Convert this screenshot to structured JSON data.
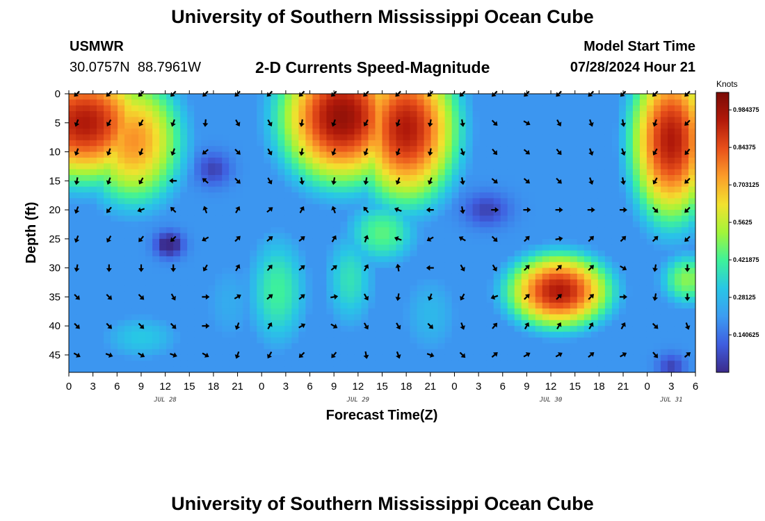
{
  "header": {
    "title": "University of Southern Mississippi Ocean Cube",
    "station_name": "USMWR",
    "station_coords": "30.0757N  88.7961W",
    "subtitle": "2-D Currents Speed-Magnitude",
    "model_label": "Model Start Time",
    "model_time": "07/28/2024 Hour 21"
  },
  "footer": {
    "title": "University of Southern Mississippi Ocean Cube"
  },
  "colors": [
    "#3b2a8a",
    "#3f5ee0",
    "#3c9cf2",
    "#28c6e6",
    "#3ef29a",
    "#a2f53a",
    "#f2e12e",
    "#fb9d2a",
    "#e8501a",
    "#b21a0a",
    "#7a0b06"
  ],
  "chart_data": {
    "type": "heatmap",
    "xlabel": "Forecast Time(Z)",
    "ylabel": "Depth (ft)",
    "units": "Knots",
    "x_range_hours": [
      0,
      78
    ],
    "x_ticks_hours": [
      0,
      3,
      6,
      9,
      12,
      15,
      18,
      21,
      24,
      27,
      30,
      33,
      36,
      39,
      42,
      45,
      48,
      51,
      54,
      57,
      60,
      63,
      66,
      69,
      72,
      75,
      78
    ],
    "x_tick_labels": [
      "0",
      "3",
      "6",
      "9",
      "12",
      "15",
      "18",
      "21",
      "0",
      "3",
      "6",
      "9",
      "12",
      "15",
      "18",
      "21",
      "0",
      "3",
      "6",
      "9",
      "12",
      "15",
      "18",
      "21",
      "0",
      "3",
      "6"
    ],
    "date_labels": [
      {
        "text": "JUL 28",
        "hour": 12
      },
      {
        "text": "JUL 29",
        "hour": 36
      },
      {
        "text": "JUL 30",
        "hour": 60
      },
      {
        "text": "JUL 31",
        "hour": 75
      }
    ],
    "y_range_ft": [
      0,
      48
    ],
    "y_ticks": [
      0,
      5,
      10,
      15,
      20,
      25,
      30,
      35,
      40,
      45
    ],
    "colorbar": {
      "min": 0,
      "max": 1.05,
      "ticks": [
        0.140625,
        0.28125,
        0.421875,
        0.5625,
        0.703125,
        0.84375,
        0.984375
      ],
      "tick_labels": [
        "0.140625",
        "0.28125",
        "0.421875",
        "0.5625",
        "0.703125",
        "0.84375",
        "0.984375"
      ]
    },
    "speed_features": [
      {
        "hour": 2,
        "depth": 5,
        "sigma_h": 6.5,
        "sigma_d": 8,
        "value": 0.95
      },
      {
        "hour": 8,
        "depth": 8,
        "sigma_h": 5,
        "sigma_d": 9,
        "value": 0.75
      },
      {
        "hour": 34,
        "depth": 4,
        "sigma_h": 6,
        "sigma_d": 9,
        "value": 1.0
      },
      {
        "hour": 42,
        "depth": 6,
        "sigma_h": 5,
        "sigma_d": 10,
        "value": 0.95
      },
      {
        "hour": 39,
        "depth": 24,
        "sigma_h": 4,
        "sigma_d": 5,
        "value": 0.45
      },
      {
        "hour": 61,
        "depth": 34,
        "sigma_h": 5,
        "sigma_d": 5,
        "value": 0.95
      },
      {
        "hour": 75,
        "depth": 8,
        "sigma_h": 4,
        "sigma_d": 11,
        "value": 0.95
      },
      {
        "hour": 77,
        "depth": 32,
        "sigma_h": 3,
        "sigma_d": 4,
        "value": 0.5
      },
      {
        "hour": 26,
        "depth": 34,
        "sigma_h": 3.5,
        "sigma_d": 9,
        "value": 0.42
      },
      {
        "hour": 35,
        "depth": 32,
        "sigma_h": 3,
        "sigma_d": 8,
        "value": 0.38
      },
      {
        "hour": 20,
        "depth": 36,
        "sigma_h": 4,
        "sigma_d": 9,
        "value": 0.25
      },
      {
        "hour": 45,
        "depth": 38,
        "sigma_h": 4,
        "sigma_d": 8,
        "value": 0.28
      },
      {
        "hour": 9,
        "depth": 42,
        "sigma_h": 5,
        "sigma_d": 4,
        "value": 0.32
      },
      {
        "hour": 12.5,
        "depth": 26,
        "sigma_h": 1.2,
        "sigma_d": 1.5,
        "value": -0.25
      },
      {
        "hour": 18,
        "depth": 13,
        "sigma_h": 1.5,
        "sigma_d": 2,
        "value": -0.15
      },
      {
        "hour": 52,
        "depth": 20,
        "sigma_h": 2,
        "sigma_d": 2,
        "value": -0.15
      },
      {
        "hour": 75,
        "depth": 47,
        "sigma_h": 1.2,
        "sigma_d": 1.5,
        "value": -0.15
      }
    ],
    "background_speed": 0.2,
    "arrow_hours": [
      1,
      5,
      9,
      13,
      17,
      21,
      25,
      29,
      33,
      37,
      41,
      45,
      49,
      53,
      57,
      61,
      65,
      69,
      73,
      77
    ],
    "arrow_depths": [
      0,
      5,
      10,
      15,
      20,
      25,
      30,
      35,
      40,
      45
    ],
    "arrow_directions_deg": [
      [
        135,
        135,
        135,
        135,
        135,
        135,
        135,
        135,
        135,
        135,
        135,
        135,
        135,
        135,
        135,
        135,
        135,
        135,
        135,
        135
      ],
      [
        110,
        120,
        120,
        110,
        95,
        60,
        60,
        100,
        110,
        120,
        110,
        100,
        80,
        45,
        30,
        60,
        70,
        80,
        110,
        135
      ],
      [
        110,
        110,
        110,
        110,
        140,
        45,
        60,
        100,
        110,
        110,
        110,
        100,
        70,
        50,
        40,
        50,
        70,
        70,
        120,
        130
      ],
      [
        100,
        110,
        120,
        180,
        220,
        45,
        60,
        80,
        100,
        100,
        110,
        110,
        80,
        40,
        40,
        45,
        70,
        80,
        120,
        135
      ],
      [
        110,
        130,
        160,
        225,
        250,
        300,
        320,
        300,
        250,
        230,
        200,
        180,
        80,
        0,
        0,
        0,
        0,
        0,
        45,
        135
      ],
      [
        110,
        120,
        130,
        135,
        150,
        315,
        320,
        320,
        300,
        290,
        200,
        150,
        210,
        45,
        315,
        350,
        315,
        315,
        315,
        135
      ],
      [
        100,
        90,
        90,
        90,
        120,
        300,
        310,
        320,
        320,
        300,
        260,
        180,
        60,
        60,
        315,
        315,
        315,
        30,
        100,
        90
      ],
      [
        45,
        45,
        45,
        60,
        0,
        330,
        320,
        320,
        350,
        60,
        100,
        110,
        120,
        160,
        315,
        315,
        315,
        0,
        100,
        90
      ],
      [
        45,
        45,
        45,
        45,
        0,
        110,
        300,
        330,
        30,
        60,
        60,
        45,
        70,
        310,
        300,
        300,
        300,
        300,
        45,
        70
      ],
      [
        30,
        20,
        30,
        20,
        30,
        110,
        120,
        135,
        130,
        80,
        70,
        20,
        45,
        320,
        330,
        330,
        320,
        330,
        50,
        320
      ]
    ]
  }
}
